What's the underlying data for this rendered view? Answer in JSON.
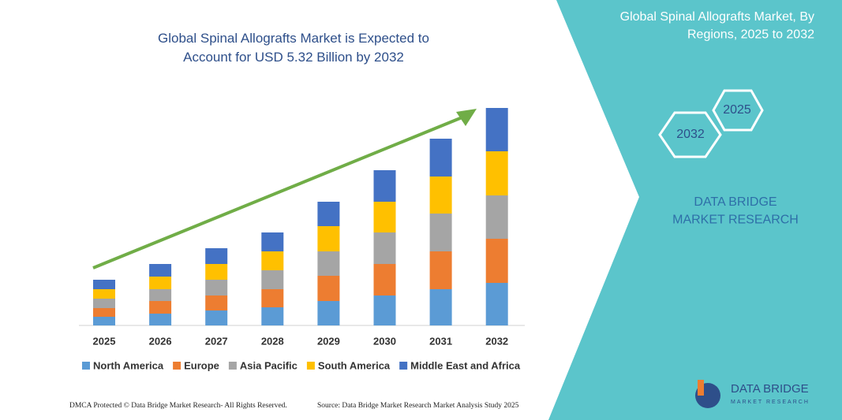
{
  "chart_data": {
    "type": "stacked-bar",
    "title": "Global Spinal Allografts Market is Expected to Account for USD 5.32 Billion by 2032",
    "categories": [
      "2025",
      "2026",
      "2027",
      "2028",
      "2029",
      "2030",
      "2031",
      "2032"
    ],
    "series": [
      {
        "name": "North America",
        "color": "#5b9bd5",
        "values": [
          11,
          15,
          19,
          23,
          31,
          38,
          46,
          54
        ]
      },
      {
        "name": "Europe",
        "color": "#ed7d31",
        "values": [
          11,
          16,
          19,
          23,
          32,
          40,
          48,
          56
        ]
      },
      {
        "name": "Asia Pacific",
        "color": "#a5a5a5",
        "values": [
          12,
          15,
          20,
          24,
          31,
          40,
          48,
          55
        ]
      },
      {
        "name": "South America",
        "color": "#ffc000",
        "values": [
          12,
          16,
          20,
          24,
          32,
          39,
          47,
          56
        ]
      },
      {
        "name": "Middle East and Africa",
        "color": "#4472c4",
        "values": [
          12,
          16,
          20,
          24,
          31,
          40,
          48,
          55
        ]
      }
    ],
    "ylim": [
      0,
      300
    ]
  },
  "panel": {
    "title": "Global Spinal Allografts Market, By Regions, 2025 to 2032",
    "hex_start": "2025",
    "hex_end": "2032",
    "brand": "DATA BRIDGE MARKET RESEARCH",
    "logo_name": "DATA BRIDGE",
    "logo_sub": "MARKET RESEARCH"
  },
  "footer": {
    "left": "DMCA Protected © Data Bridge Market Research- All Rights Reserved.",
    "right": "Source: Data Bridge Market Research Market Analysis Study 2025"
  }
}
